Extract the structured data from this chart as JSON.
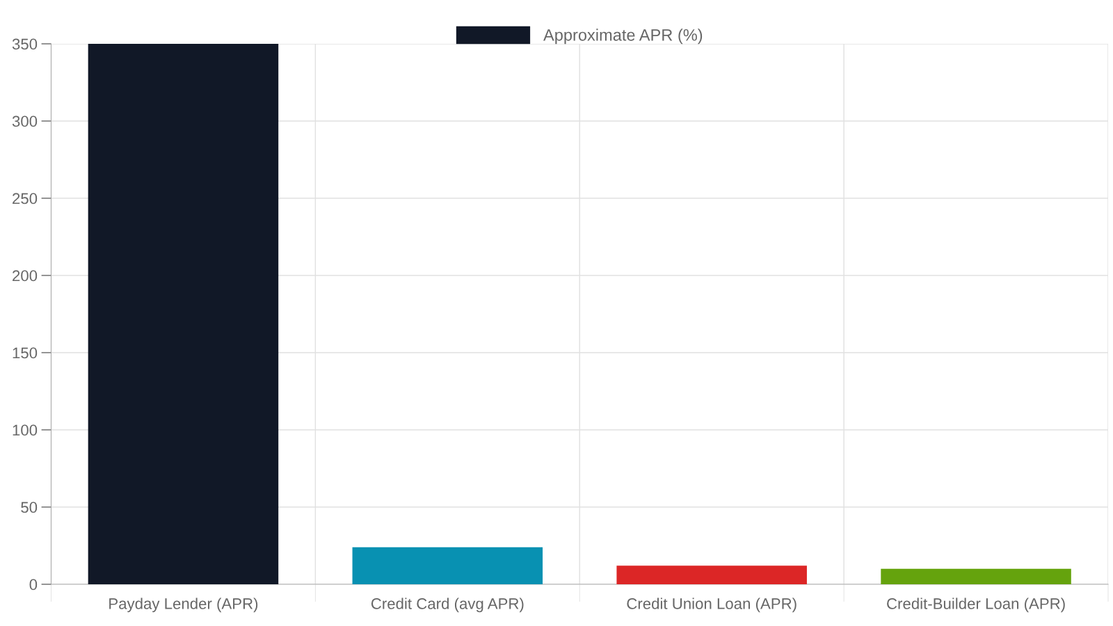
{
  "chart_data": {
    "type": "bar",
    "categories": [
      "Payday Lender (APR)",
      "Credit Card (avg APR)",
      "Credit Union Loan (APR)",
      "Credit-Builder Loan (APR)"
    ],
    "series": [
      {
        "name": "Approximate APR (%)",
        "color": "#111827",
        "colors": [
          "#111827",
          "#0891b2",
          "#dc2626",
          "#65a30d"
        ],
        "values": [
          350,
          24,
          12,
          10
        ]
      }
    ],
    "ylim": [
      0,
      350
    ],
    "yticks": [
      0,
      50,
      100,
      150,
      200,
      250,
      300,
      350
    ],
    "grid": true,
    "legend": "top"
  }
}
